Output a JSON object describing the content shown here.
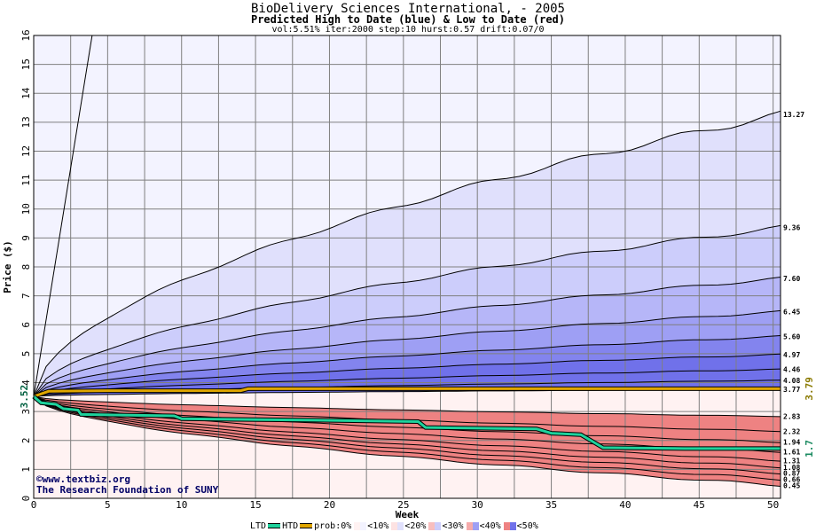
{
  "header": {
    "title": "BioDelivery Sciences International, - 2005",
    "subtitle": "Predicted High to Date (blue) &  Low to Date (red)",
    "params": "vol:5.51% iter:2000 step:10 hurst:0.57 drift:0.07/0"
  },
  "watermark": {
    "line1": "©www.textbiz.org",
    "line2": "The Research Foundation of SUNY"
  },
  "legend": {
    "ltd": "LTD",
    "htd": "HTD",
    "prob": "prob:0%",
    "bins": [
      "<10%",
      "<20%",
      "<30%",
      "<40%",
      "<50%"
    ]
  },
  "colors": {
    "background": "#ffffff",
    "grid": "#7f7f7f",
    "ltd_line": "#1ed29c",
    "htd_line": "#e0a600",
    "blue_bands": [
      "#f3f3ff",
      "#e0e0fc",
      "#cccdfb",
      "#b6b6f8",
      "#9e9ff4",
      "#8384ee",
      "#7071ea"
    ],
    "red_bands": [
      "#fff2f2",
      "#fde2e2",
      "#fbd2d2",
      "#f8bebe",
      "#f5aaaa",
      "#f19393",
      "#ee8282"
    ]
  },
  "chart_data": {
    "type": "area",
    "title": "BioDelivery Sciences International, - 2005",
    "xlabel": "Week",
    "ylabel": "Price ($)",
    "xlim": [
      0,
      50.5
    ],
    "ylim": [
      0,
      16
    ],
    "x_ticks": [
      0,
      5,
      10,
      15,
      20,
      25,
      30,
      35,
      40,
      45,
      50
    ],
    "y_ticks": [
      0,
      1,
      2,
      3,
      4,
      5,
      6,
      7,
      8,
      9,
      10,
      11,
      12,
      13,
      14,
      15,
      16
    ],
    "grid": true,
    "start_price": 3.52,
    "start_label": "3.52",
    "high_series": [
      {
        "name": "",
        "end": 13.27,
        "end_label": "13.27"
      },
      {
        "name": "",
        "end": 9.36,
        "end_label": "9.36"
      },
      {
        "name": "",
        "end": 7.6,
        "end_label": "7.60"
      },
      {
        "name": "",
        "end": 6.45,
        "end_label": "6.45"
      },
      {
        "name": "",
        "end": 5.6,
        "end_label": "5.60"
      },
      {
        "name": "",
        "end": 4.97,
        "end_label": "4.97"
      },
      {
        "name": "",
        "end": 4.46,
        "end_label": "4.46"
      },
      {
        "name": "",
        "end": 4.08,
        "end_label": "4.08"
      },
      {
        "name": "",
        "end": 3.77,
        "end_label": "3.77"
      }
    ],
    "low_series": [
      {
        "name": "",
        "end": 2.83,
        "end_label": "2.83"
      },
      {
        "name": "",
        "end": 2.32,
        "end_label": "2.32"
      },
      {
        "name": "",
        "end": 1.94,
        "end_label": "1.94"
      },
      {
        "name": "",
        "end": 1.61,
        "end_label": "1.61"
      },
      {
        "name": "",
        "end": 1.31,
        "end_label": "1.31"
      },
      {
        "name": "",
        "end": 1.08,
        "end_label": "1.08"
      },
      {
        "name": "",
        "end": 0.87,
        "end_label": "0.87"
      },
      {
        "name": "",
        "end": 0.66,
        "end_label": "0.66"
      },
      {
        "name": "",
        "end": 0.45,
        "end_label": "0.45"
      }
    ],
    "htd_actual": {
      "name": "HTD",
      "points": [
        [
          0,
          3.52
        ],
        [
          1,
          3.7
        ],
        [
          5,
          3.72
        ],
        [
          14,
          3.72
        ],
        [
          14.5,
          3.79
        ],
        [
          50.5,
          3.79
        ]
      ],
      "end_label": "3.79"
    },
    "ltd_actual": {
      "name": "LTD",
      "points": [
        [
          0,
          3.52
        ],
        [
          0.5,
          3.3
        ],
        [
          1.5,
          3.25
        ],
        [
          2,
          3.1
        ],
        [
          3,
          3.05
        ],
        [
          3.2,
          2.9
        ],
        [
          9.5,
          2.85
        ],
        [
          10,
          2.75
        ],
        [
          19,
          2.7
        ],
        [
          26,
          2.65
        ],
        [
          26.5,
          2.45
        ],
        [
          34,
          2.4
        ],
        [
          35,
          2.25
        ],
        [
          37,
          2.2
        ],
        [
          38,
          1.9
        ],
        [
          38.5,
          1.75
        ],
        [
          44,
          1.72
        ],
        [
          50.5,
          1.72
        ]
      ],
      "end_label": "1.7"
    },
    "outer_bound": {
      "points": [
        [
          0,
          3.52
        ],
        [
          3.95,
          16
        ]
      ]
    }
  }
}
